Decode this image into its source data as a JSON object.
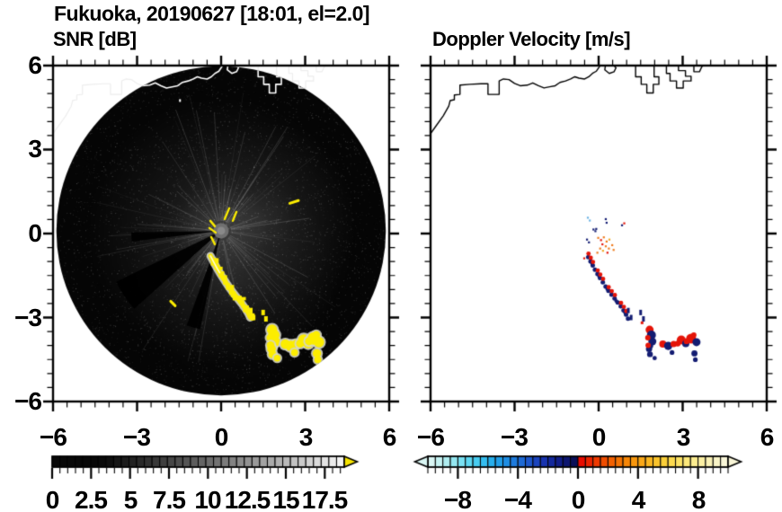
{
  "title": "Fukuoka, 20190627 [18:01, el=2.0]",
  "panels": {
    "left": {
      "subtitle": "SNR [dB]",
      "xtick_labels": [
        "−6",
        "−3",
        "0",
        "3",
        "6"
      ],
      "ytick_labels": [
        "6",
        "3",
        "0",
        "−3",
        "−6"
      ]
    },
    "right": {
      "subtitle": "Doppler Velocity [m/s]",
      "xtick_labels": [
        "−6",
        "−3",
        "0",
        "3",
        "6"
      ]
    }
  },
  "colorbars": {
    "snr": {
      "tick_labels": [
        "0",
        "2.5",
        "5",
        "7.5",
        "10",
        "12.5",
        "15",
        "17.5"
      ],
      "tick_values": [
        0,
        2.5,
        5,
        7.5,
        10,
        12.5,
        15,
        17.5
      ],
      "range": [
        0,
        18.75
      ],
      "cells": 38,
      "minor_step": 0.5,
      "major_step": 2.5,
      "over_color": "#f6e400",
      "ramp_start": 3,
      "gamma": 1.1
    },
    "doppler": {
      "tick_labels": [
        "−8",
        "−4",
        "0",
        "4",
        "8"
      ],
      "tick_values": [
        -8,
        -4,
        0,
        4,
        8
      ],
      "range": [
        -10,
        10
      ],
      "cells": 40,
      "minor_step": 0.5,
      "neg_stops": [
        "#daf6f4",
        "#b2eef0",
        "#7ee2f2",
        "#4cd0f2",
        "#2ab4ee",
        "#1e96e6",
        "#1e74da",
        "#1c50c8",
        "#1630ac",
        "#101c86",
        "#0a1058"
      ],
      "pos_stops": [
        "#e80c00",
        "#ee3c00",
        "#f36400",
        "#f78c08",
        "#f9ae1c",
        "#fbcb30",
        "#fce05c",
        "#fcec8c",
        "#faf2b4",
        "#f9f6d8"
      ]
    }
  },
  "chart_data": {
    "type": "heatmap",
    "xlim": [
      -6,
      6
    ],
    "ylim": [
      -6,
      6
    ],
    "xticks": [
      -6,
      -3,
      0,
      3,
      6
    ],
    "yticks": [
      -6,
      -3,
      0,
      3,
      6
    ],
    "minor_tick_step": 0.5,
    "scan": {
      "center": [
        0,
        0.1
      ],
      "radius": 5.88
    },
    "coastline": {
      "main": [
        [
          -6.05,
          3.5
        ],
        [
          -5.8,
          3.85
        ],
        [
          -5.55,
          4.2
        ],
        [
          -5.35,
          4.55
        ],
        [
          -5.3,
          4.75
        ],
        [
          -5.15,
          4.78
        ],
        [
          -5.15,
          4.95
        ],
        [
          -4.95,
          4.97
        ],
        [
          -4.95,
          5.3
        ],
        [
          -4.6,
          5.33
        ],
        [
          -4.2,
          5.35
        ],
        [
          -3.95,
          5.35
        ],
        [
          -3.95,
          4.97
        ],
        [
          -3.72,
          4.97
        ],
        [
          -3.55,
          4.97
        ],
        [
          -3.55,
          5.45
        ],
        [
          -3.4,
          5.52
        ],
        [
          -3.2,
          5.5
        ],
        [
          -3.0,
          5.36
        ],
        [
          -2.8,
          5.28
        ],
        [
          -2.55,
          5.3
        ],
        [
          -2.35,
          5.38
        ],
        [
          -2.15,
          5.28
        ],
        [
          -1.95,
          5.2
        ],
        [
          -1.75,
          5.24
        ],
        [
          -1.55,
          5.28
        ],
        [
          -1.38,
          5.4
        ],
        [
          -1.18,
          5.45
        ],
        [
          -1.0,
          5.52
        ],
        [
          -0.85,
          5.6
        ],
        [
          -0.7,
          5.55
        ],
        [
          -0.5,
          5.52
        ],
        [
          -0.35,
          5.6
        ],
        [
          -0.22,
          5.72
        ],
        [
          -0.08,
          5.8
        ],
        [
          0.02,
          5.95
        ],
        [
          0.08,
          6.05
        ]
      ],
      "island": [
        [
          0.25,
          6.05
        ],
        [
          0.22,
          5.85
        ],
        [
          0.38,
          5.72
        ],
        [
          0.55,
          5.78
        ],
        [
          0.62,
          5.92
        ],
        [
          0.5,
          6.05
        ]
      ],
      "ports": [
        [
          [
            1.32,
            6.05
          ],
          [
            1.32,
            5.6
          ],
          [
            1.52,
            5.6
          ],
          [
            1.52,
            5.33
          ],
          [
            1.72,
            5.33
          ],
          [
            1.72,
            5.02
          ],
          [
            1.95,
            5.02
          ],
          [
            1.95,
            5.33
          ],
          [
            2.15,
            5.33
          ],
          [
            2.15,
            5.6
          ],
          [
            1.98,
            5.6
          ],
          [
            1.98,
            6.05
          ]
        ],
        [
          [
            2.42,
            6.05
          ],
          [
            2.42,
            5.72
          ],
          [
            2.55,
            5.72
          ],
          [
            2.55,
            5.45
          ],
          [
            2.78,
            5.45
          ],
          [
            2.78,
            5.2
          ],
          [
            3.02,
            5.2
          ],
          [
            3.02,
            5.45
          ],
          [
            3.3,
            5.45
          ],
          [
            3.3,
            5.62
          ],
          [
            3.1,
            5.62
          ],
          [
            3.1,
            5.82
          ],
          [
            2.85,
            5.82
          ],
          [
            2.85,
            6.05
          ]
        ],
        [
          [
            3.4,
            6.05
          ],
          [
            3.4,
            5.78
          ],
          [
            3.6,
            5.78
          ],
          [
            3.68,
            5.95
          ],
          [
            3.75,
            6.05
          ]
        ]
      ]
    },
    "wedges": [
      [
        146,
        8,
        130
      ],
      [
        106,
        4,
        112
      ],
      [
        176,
        3,
        100
      ]
    ],
    "center_dashes": [
      [
        4,
        -13,
        9,
        -25
      ],
      [
        13,
        -11,
        17,
        -21
      ],
      [
        -13,
        -3,
        -6,
        2
      ],
      [
        -12,
        -11,
        -7,
        -5
      ],
      [
        -11,
        7,
        -7,
        15
      ]
    ],
    "echo_track": [
      [
        -0.38,
        -0.8
      ],
      [
        -0.3,
        -0.95
      ],
      [
        -0.22,
        -1.1
      ],
      [
        -0.14,
        -1.25
      ],
      [
        -0.05,
        -1.4
      ],
      [
        0.04,
        -1.55
      ],
      [
        0.14,
        -1.7
      ],
      [
        0.24,
        -1.85
      ],
      [
        0.34,
        -2.0
      ],
      [
        0.45,
        -2.14
      ],
      [
        0.56,
        -2.28
      ],
      [
        0.67,
        -2.42
      ],
      [
        0.78,
        -2.56
      ],
      [
        0.88,
        -2.7
      ],
      [
        0.97,
        -2.85
      ],
      [
        1.04,
        -3.0
      ]
    ],
    "sparse_points": [
      [
        1.06,
        -2.75
      ],
      [
        1.16,
        -3.0
      ],
      [
        1.5,
        -2.82
      ],
      [
        1.6,
        -3.05
      ]
    ],
    "blobs": [
      {
        "a": [
          1.82,
          -3.5
        ],
        "c": [
          [
            0,
            -2,
            4.5,
            "R"
          ],
          [
            2,
            4,
            5,
            "N"
          ],
          [
            3,
            11,
            4.5,
            "N"
          ],
          [
            -2,
            7,
            3,
            "R"
          ],
          [
            1,
            16,
            3,
            "N"
          ]
        ]
      },
      {
        "a": [
          1.8,
          -4.12
        ],
        "c": [
          [
            0,
            0,
            3.5,
            "N"
          ],
          [
            -1,
            -4,
            3,
            "R"
          ],
          [
            1,
            6,
            3.2,
            "N"
          ]
        ]
      },
      {
        "a": [
          2.42,
          -3.95
        ],
        "c": [
          [
            -4,
            0,
            4,
            "R"
          ],
          [
            2,
            2,
            4.6,
            "N"
          ],
          [
            8,
            0,
            3.5,
            "R"
          ]
        ]
      },
      {
        "a": [
          2.62,
          -4.25
        ],
        "c": [
          [
            0,
            0,
            2.6,
            "N"
          ]
        ]
      },
      {
        "a": [
          2.95,
          -3.8
        ],
        "c": [
          [
            0,
            0,
            5,
            "R"
          ],
          [
            5,
            4,
            4,
            "N"
          ],
          [
            -4,
            4,
            3.2,
            "R"
          ]
        ]
      },
      {
        "a": [
          3.3,
          -3.75
        ],
        "c": [
          [
            0,
            0,
            5.5,
            "R"
          ],
          [
            6,
            4,
            4.5,
            "N"
          ],
          [
            -5,
            3,
            3.2,
            "R"
          ],
          [
            3,
            -4,
            3,
            "R"
          ]
        ]
      },
      {
        "a": [
          3.42,
          -4.28
        ],
        "c": [
          [
            0,
            0,
            3.4,
            "N"
          ],
          [
            1,
            7,
            2.6,
            "N"
          ]
        ]
      },
      {
        "a": [
          2.0,
          -4.45
        ],
        "c": [
          [
            0,
            0,
            2.4,
            "N"
          ]
        ]
      }
    ],
    "extra_dashes": [
      [
        -1.8,
        -2.42,
        -1.64,
        -2.58
      ],
      [
        2.45,
        1.08,
        2.76,
        1.18
      ]
    ],
    "white_speck": [
      -1.5,
      4.8
    ],
    "specks": [
      [
        -0.42,
        0.6,
        "lb"
      ],
      [
        -0.35,
        0.5,
        "lb"
      ],
      [
        0.22,
        0.55,
        "nv"
      ],
      [
        0.25,
        0.42,
        "nv"
      ],
      [
        0.8,
        0.33,
        "nv"
      ],
      [
        0.88,
        0.4,
        "rd"
      ],
      [
        -0.22,
        0.18,
        "nv"
      ],
      [
        -0.15,
        0.12,
        "nv"
      ],
      [
        -0.12,
        0.2,
        "nv"
      ],
      [
        -0.45,
        -0.18,
        "nv"
      ],
      [
        -0.38,
        -0.28,
        "nv"
      ],
      [
        -0.05,
        -0.12,
        "or"
      ],
      [
        0.05,
        -0.2,
        "rd"
      ],
      [
        0.15,
        -0.1,
        "or"
      ],
      [
        0.25,
        -0.25,
        "or"
      ],
      [
        0.35,
        -0.18,
        "am"
      ],
      [
        0.1,
        -0.35,
        "rd"
      ],
      [
        0.22,
        -0.42,
        "or"
      ],
      [
        0.33,
        -0.5,
        "or"
      ],
      [
        0.02,
        -0.5,
        "or"
      ],
      [
        0.12,
        -0.58,
        "am"
      ],
      [
        0.45,
        -0.38,
        "or"
      ],
      [
        0.5,
        -0.55,
        "or"
      ],
      [
        -0.08,
        -0.65,
        "or"
      ],
      [
        0.28,
        -0.65,
        "rd"
      ],
      [
        -0.55,
        -0.85,
        "rd"
      ]
    ],
    "colors": {
      "background": "#ffffff",
      "axis": "#000000",
      "scan_fill": "#050505",
      "coast_left": "#ffffff",
      "coast_left_outside": "#ededed",
      "coast_right": "#000000",
      "echo": "#fced00",
      "echo_halo": "rgba(214,214,198,0.9)",
      "echo_core": "rgba(255,255,255,0.85)",
      "vel_pos": "#e41408",
      "vel_neg": "#131c72",
      "speck_orange": "#ee7a1c",
      "speck_amber": "#f0a828",
      "speck_lightblue": "#6cb4e4",
      "speck_blue": "#2a6ad0",
      "center_disk": "#707070"
    }
  }
}
